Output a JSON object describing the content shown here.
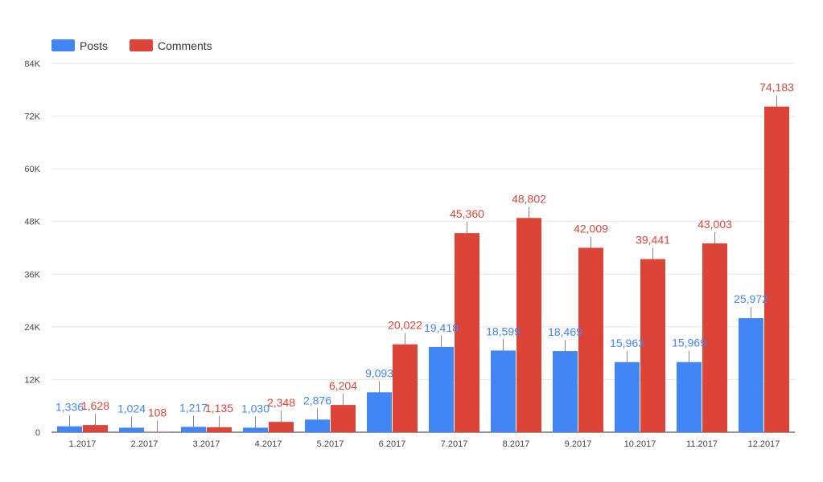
{
  "chart_data": {
    "type": "bar",
    "title": "",
    "xlabel": "",
    "ylabel": "",
    "categories": [
      "1.2017",
      "2.2017",
      "3.2017",
      "4.2017",
      "5.2017",
      "6.2017",
      "7.2017",
      "8.2017",
      "9.2017",
      "10.2017",
      "11.2017",
      "12.2017"
    ],
    "series": [
      {
        "name": "Posts",
        "color": "#4285f4",
        "values": [
          1336,
          1024,
          1217,
          1030,
          2876,
          9093,
          19418,
          18599,
          18469,
          15963,
          15969,
          25972
        ],
        "labels": [
          "1,336",
          "1,024",
          "1,217",
          "1,030",
          "2,876",
          "9,093",
          "19,418",
          "18,599",
          "18,469",
          "15,963",
          "15,969",
          "25,972"
        ]
      },
      {
        "name": "Comments",
        "color": "#db4437",
        "values": [
          1628,
          108,
          1135,
          2348,
          6204,
          20022,
          45360,
          48802,
          42009,
          39441,
          43003,
          74183
        ],
        "labels": [
          "1,628",
          "108",
          "1,135",
          "2,348",
          "6,204",
          "20,022",
          "45,360",
          "48,802",
          "42,009",
          "39,441",
          "43,003",
          "74,183"
        ]
      }
    ],
    "ylim": [
      0,
      84000
    ],
    "yticks": [
      0,
      12000,
      24000,
      36000,
      48000,
      60000,
      72000,
      84000
    ],
    "ytick_labels": [
      "0",
      "12K",
      "24K",
      "36K",
      "48K",
      "60K",
      "72K",
      "84K"
    ],
    "grid": true,
    "legend": "top-left"
  }
}
